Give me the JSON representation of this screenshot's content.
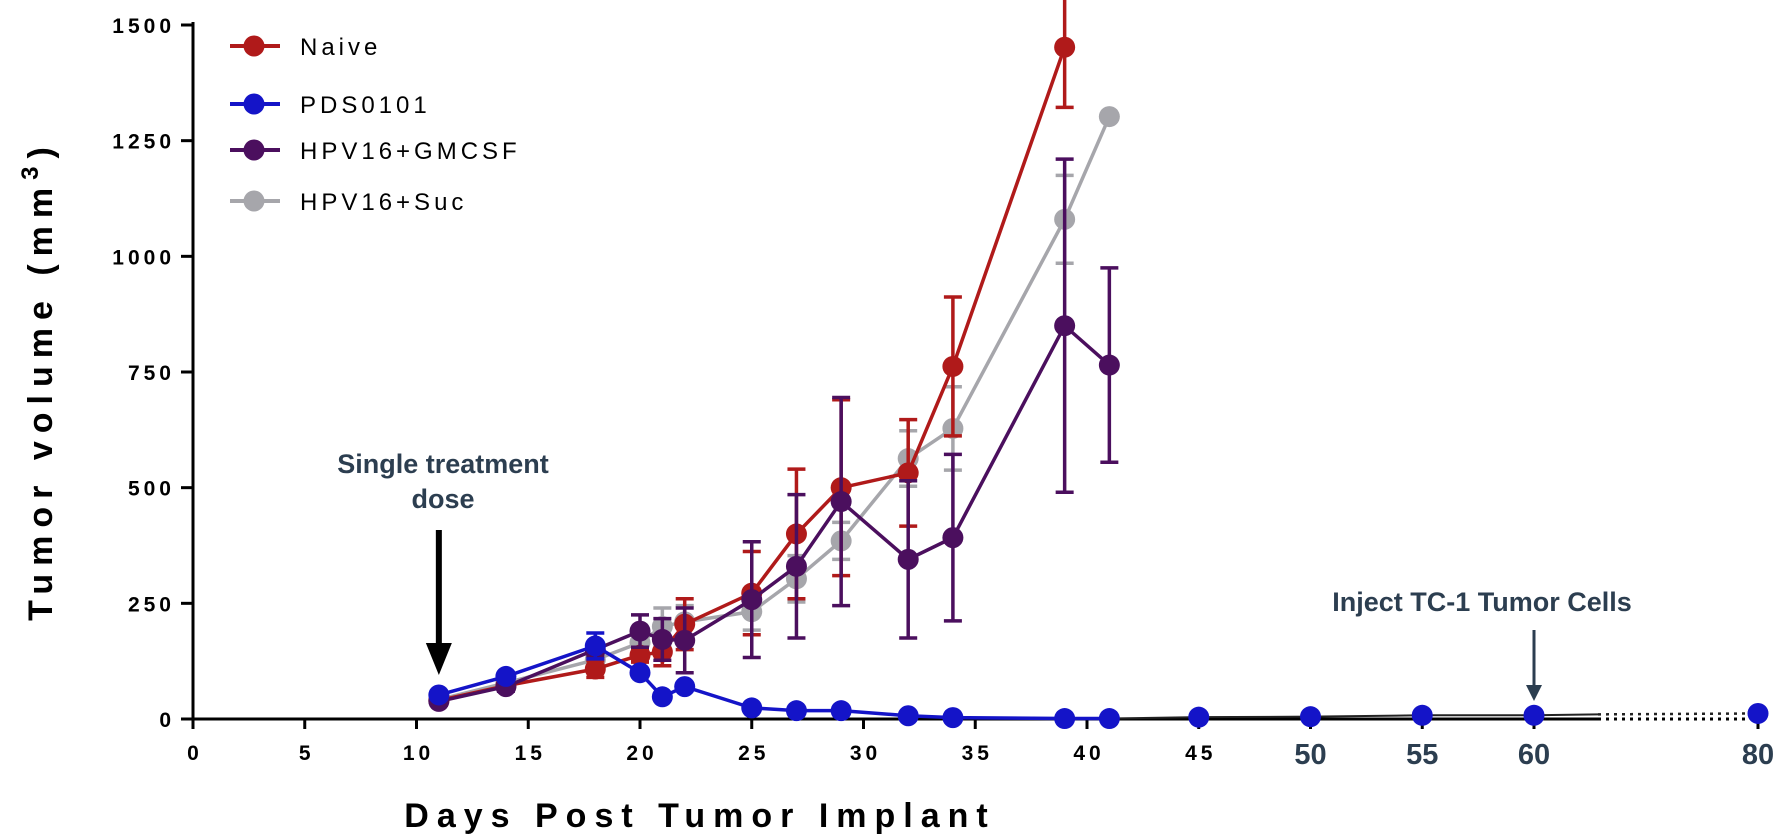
{
  "chart_data": {
    "type": "line",
    "xlabel": "Days Post Tumor Implant",
    "ylabel": "Tumor volume (mm",
    "ylabel_sup": "3",
    "ylabel_close": ")",
    "ylim": [
      0,
      1500
    ],
    "yticks": [
      {
        "value": 0,
        "label": "0"
      },
      {
        "value": 250,
        "label": "250"
      },
      {
        "value": 500,
        "label": "500"
      },
      {
        "value": 750,
        "label": "750"
      },
      {
        "value": 1000,
        "label": "1000"
      },
      {
        "value": 1250,
        "label": "1250"
      },
      {
        "value": 1500,
        "label": "1500"
      }
    ],
    "xticks": [
      {
        "value": 0,
        "label": "0",
        "style": "small"
      },
      {
        "value": 5,
        "label": "5",
        "style": "small"
      },
      {
        "value": 10,
        "label": "10",
        "style": "small"
      },
      {
        "value": 15,
        "label": "15",
        "style": "small"
      },
      {
        "value": 20,
        "label": "20",
        "style": "small"
      },
      {
        "value": 25,
        "label": "25",
        "style": "small"
      },
      {
        "value": 30,
        "label": "30",
        "style": "small"
      },
      {
        "value": 35,
        "label": "35",
        "style": "small"
      },
      {
        "value": 40,
        "label": "40",
        "style": "small"
      },
      {
        "value": 45,
        "label": "45",
        "style": "small"
      },
      {
        "value": 50,
        "label": "50",
        "style": "big"
      },
      {
        "value": 55,
        "label": "55",
        "style": "big"
      },
      {
        "value": 60,
        "label": "60",
        "style": "big"
      },
      {
        "value": 80,
        "label": "80",
        "style": "big"
      }
    ],
    "axis_break": {
      "after": 65,
      "before": 80,
      "style": "dotted"
    },
    "grid": false,
    "legend_position": "top-left",
    "series": [
      {
        "name": "Naive",
        "color": "#b01a1a",
        "points": [
          {
            "x": 11,
            "y": 40,
            "err": 8
          },
          {
            "x": 14,
            "y": 72,
            "err": 10
          },
          {
            "x": 18,
            "y": 108,
            "err": 18
          },
          {
            "x": 20,
            "y": 138,
            "err": 15
          },
          {
            "x": 21,
            "y": 145,
            "err": 30
          },
          {
            "x": 22,
            "y": 205,
            "err": 55
          },
          {
            "x": 25,
            "y": 272,
            "err": 90
          },
          {
            "x": 27,
            "y": 400,
            "err": 140
          },
          {
            "x": 29,
            "y": 500,
            "err": 190
          },
          {
            "x": 32,
            "y": 532,
            "err": 115
          },
          {
            "x": 34,
            "y": 762,
            "err": 150
          },
          {
            "x": 39,
            "y": 1452,
            "err": 130
          }
        ]
      },
      {
        "name": "PDS0101",
        "color": "#1414c8",
        "points": [
          {
            "x": 11,
            "y": 52,
            "err": 8
          },
          {
            "x": 14,
            "y": 92,
            "err": 8
          },
          {
            "x": 18,
            "y": 158,
            "err": 28
          },
          {
            "x": 20,
            "y": 100,
            "err": 5
          },
          {
            "x": 21,
            "y": 48,
            "err": 5
          },
          {
            "x": 22,
            "y": 70,
            "err": 5
          },
          {
            "x": 25,
            "y": 24,
            "err": 3
          },
          {
            "x": 27,
            "y": 18,
            "err": 3
          },
          {
            "x": 29,
            "y": 18,
            "err": 3
          },
          {
            "x": 32,
            "y": 7,
            "err": 2
          },
          {
            "x": 34,
            "y": 3,
            "err": 1
          },
          {
            "x": 39,
            "y": 1,
            "err": 0
          },
          {
            "x": 41,
            "y": 1,
            "err": 0
          },
          {
            "x": 45,
            "y": 4,
            "err": 0
          },
          {
            "x": 50,
            "y": 5,
            "err": 0
          },
          {
            "x": 55,
            "y": 8,
            "err": 0
          },
          {
            "x": 60,
            "y": 8,
            "err": 0
          },
          {
            "x": 80,
            "y": 12,
            "err": 0
          }
        ]
      },
      {
        "name": "HPV16+GMCSF",
        "color": "#4b0f5e",
        "points": [
          {
            "x": 11,
            "y": 38,
            "err": 8
          },
          {
            "x": 14,
            "y": 70,
            "err": 10
          },
          {
            "x": 18,
            "y": 150,
            "err": 15
          },
          {
            "x": 20,
            "y": 190,
            "err": 35
          },
          {
            "x": 21,
            "y": 172,
            "err": 45
          },
          {
            "x": 22,
            "y": 170,
            "err": 70
          },
          {
            "x": 25,
            "y": 258,
            "err": 125
          },
          {
            "x": 27,
            "y": 330,
            "err": 155
          },
          {
            "x": 29,
            "y": 470,
            "err": 225
          },
          {
            "x": 32,
            "y": 345,
            "err": 170
          },
          {
            "x": 34,
            "y": 392,
            "err": 180
          },
          {
            "x": 39,
            "y": 850,
            "err": 360
          },
          {
            "x": 41,
            "y": 765,
            "err": 210
          }
        ]
      },
      {
        "name": "HPV16+Suc",
        "color": "#a6a6ab",
        "points": [
          {
            "x": 11,
            "y": 42,
            "err": 8
          },
          {
            "x": 14,
            "y": 78,
            "err": 10
          },
          {
            "x": 18,
            "y": 128,
            "err": 18
          },
          {
            "x": 20,
            "y": 165,
            "err": 30
          },
          {
            "x": 21,
            "y": 200,
            "err": 40
          },
          {
            "x": 22,
            "y": 210,
            "err": 35
          },
          {
            "x": 25,
            "y": 232,
            "err": 40
          },
          {
            "x": 27,
            "y": 303,
            "err": 50
          },
          {
            "x": 29,
            "y": 385,
            "err": 40
          },
          {
            "x": 32,
            "y": 563,
            "err": 60
          },
          {
            "x": 34,
            "y": 628,
            "err": 90
          },
          {
            "x": 39,
            "y": 1080,
            "err": 95
          },
          {
            "x": 41,
            "y": 1302,
            "err": 0
          }
        ]
      }
    ],
    "annotations": [
      {
        "text_lines": [
          "Single treatment",
          "dose"
        ],
        "x": 11,
        "arrow": "large"
      },
      {
        "text_lines": [
          "Inject TC-1 Tumor Cells"
        ],
        "x": 60,
        "arrow": "small"
      }
    ]
  }
}
